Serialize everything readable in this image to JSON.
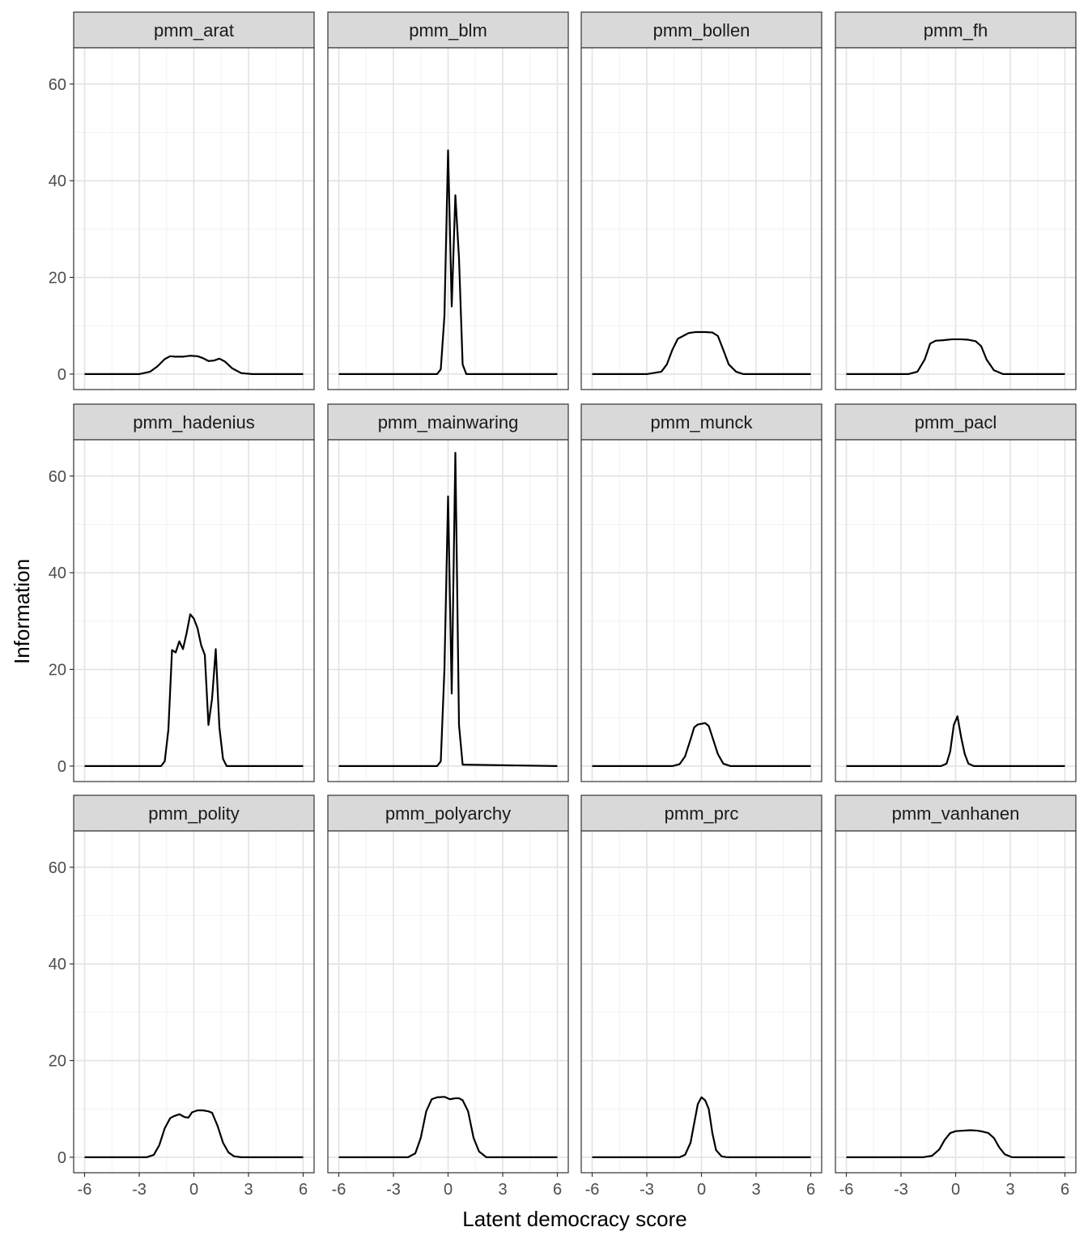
{
  "chart_data": {
    "type": "line",
    "layout": "facet-wrap",
    "ncol": 4,
    "xlabel": "Latent democracy score",
    "ylabel": "Information",
    "xlim": [
      -6.6,
      6.6
    ],
    "ylim": [
      -3.2,
      67.5
    ],
    "x_ticks": [
      -6,
      -3,
      0,
      3,
      6
    ],
    "y_ticks": [
      0,
      20,
      40,
      60
    ],
    "x_tick_labels": [
      "-6",
      "-3",
      "0",
      "3",
      "6"
    ],
    "y_tick_labels": [
      "0",
      "20",
      "40",
      "60"
    ],
    "grid": true,
    "line_color": "#000000",
    "strip_fill": "#d9d9d9",
    "panels": [
      {
        "name": "pmm_arat",
        "x": [
          -6,
          -3,
          -2.4,
          -2,
          -1.6,
          -1.3,
          -1,
          -0.6,
          -0.2,
          0.2,
          0.5,
          0.8,
          1.1,
          1.4,
          1.7,
          2.1,
          2.6,
          3.2,
          6
        ],
        "y": [
          0,
          0,
          0.5,
          1.6,
          3.1,
          3.7,
          3.6,
          3.6,
          3.8,
          3.7,
          3.3,
          2.7,
          2.8,
          3.2,
          2.6,
          1.2,
          0.2,
          0,
          0
        ]
      },
      {
        "name": "pmm_blm",
        "x": [
          -6,
          -0.6,
          -0.4,
          -0.2,
          0,
          0.2,
          0.4,
          0.6,
          0.8,
          1,
          6
        ],
        "y": [
          0,
          0,
          1,
          12,
          46.3,
          14,
          37,
          24,
          2,
          0,
          0
        ]
      },
      {
        "name": "pmm_bollen",
        "x": [
          -6,
          -3,
          -2.2,
          -1.9,
          -1.6,
          -1.3,
          -1,
          -0.7,
          -0.3,
          0.2,
          0.6,
          0.9,
          1.2,
          1.5,
          1.9,
          2.3,
          3,
          6
        ],
        "y": [
          0,
          0,
          0.5,
          2,
          5,
          7.3,
          7.9,
          8.5,
          8.7,
          8.7,
          8.6,
          7.9,
          5,
          2,
          0.5,
          0,
          0,
          0
        ]
      },
      {
        "name": "pmm_fh",
        "x": [
          -6,
          -2.6,
          -2.1,
          -1.7,
          -1.4,
          -1.1,
          -0.7,
          -0.2,
          0.3,
          0.7,
          1.1,
          1.4,
          1.7,
          2.1,
          2.6,
          6
        ],
        "y": [
          0,
          0,
          0.5,
          3,
          6.3,
          6.9,
          7,
          7.2,
          7.2,
          7.1,
          6.8,
          5.8,
          3,
          0.8,
          0,
          0
        ]
      },
      {
        "name": "pmm_hadenius",
        "x": [
          -6,
          -1.8,
          -1.6,
          -1.4,
          -1.2,
          -1,
          -0.8,
          -0.6,
          -0.4,
          -0.2,
          0,
          0.2,
          0.4,
          0.6,
          0.8,
          1,
          1.2,
          1.4,
          1.6,
          1.8,
          6
        ],
        "y": [
          0,
          0,
          1,
          7.5,
          24,
          23.5,
          25.8,
          24.2,
          27.5,
          31.4,
          30.5,
          28.5,
          25,
          23,
          8.5,
          14,
          24.2,
          8,
          1.5,
          0,
          0
        ]
      },
      {
        "name": "pmm_mainwaring",
        "x": [
          -6,
          -0.6,
          -0.4,
          -0.2,
          0,
          0.2,
          0.4,
          0.6,
          0.8,
          6
        ],
        "y": [
          0,
          0,
          1,
          20,
          55.8,
          15,
          64.8,
          8.5,
          0.3,
          0
        ]
      },
      {
        "name": "pmm_munck",
        "x": [
          -6,
          -1.6,
          -1.2,
          -0.9,
          -0.6,
          -0.4,
          -0.2,
          0.2,
          0.4,
          0.6,
          0.9,
          1.2,
          1.6,
          6
        ],
        "y": [
          0,
          0,
          0.4,
          2,
          5.5,
          8,
          8.6,
          8.9,
          8.3,
          6,
          2.5,
          0.5,
          0,
          0
        ]
      },
      {
        "name": "pmm_pacl",
        "x": [
          -6,
          -0.8,
          -0.5,
          -0.3,
          -0.1,
          0.1,
          0.3,
          0.5,
          0.7,
          1,
          6
        ],
        "y": [
          0,
          0,
          0.5,
          3,
          8.5,
          10.3,
          6,
          2.5,
          0.5,
          0,
          0
        ]
      },
      {
        "name": "pmm_polity",
        "x": [
          -6,
          -2.6,
          -2.2,
          -1.9,
          -1.6,
          -1.3,
          -1.1,
          -0.8,
          -0.5,
          -0.3,
          -0.1,
          0.2,
          0.5,
          0.8,
          1,
          1.3,
          1.6,
          1.9,
          2.2,
          2.6,
          6
        ],
        "y": [
          0,
          0,
          0.5,
          2.5,
          6,
          8.1,
          8.5,
          8.9,
          8.3,
          8.2,
          9.3,
          9.7,
          9.7,
          9.5,
          9.2,
          6.5,
          3,
          1,
          0.2,
          0,
          0
        ]
      },
      {
        "name": "pmm_polyarchy",
        "x": [
          -6,
          -2.2,
          -1.8,
          -1.5,
          -1.2,
          -0.9,
          -0.6,
          -0.2,
          0.1,
          0.4,
          0.6,
          0.8,
          1.1,
          1.4,
          1.7,
          2.1,
          6
        ],
        "y": [
          0,
          0,
          0.8,
          4,
          9.5,
          12,
          12.4,
          12.5,
          12,
          12.2,
          12.2,
          11.8,
          9.5,
          4,
          1.2,
          0,
          0
        ]
      },
      {
        "name": "pmm_prc",
        "x": [
          -6,
          -1.2,
          -0.9,
          -0.6,
          -0.4,
          -0.2,
          0,
          0.2,
          0.4,
          0.6,
          0.8,
          1.1,
          1.4,
          6
        ],
        "y": [
          0,
          0,
          0.5,
          3,
          7,
          11,
          12.4,
          11.8,
          10,
          5,
          1.5,
          0.2,
          0,
          0
        ]
      },
      {
        "name": "pmm_vanhanen",
        "x": [
          -6,
          -1.8,
          -1.3,
          -0.9,
          -0.6,
          -0.3,
          0,
          0.4,
          0.8,
          1.2,
          1.5,
          1.8,
          2.1,
          2.4,
          2.7,
          3.1,
          6
        ],
        "y": [
          0,
          0,
          0.3,
          1.6,
          3.6,
          5,
          5.4,
          5.5,
          5.6,
          5.5,
          5.3,
          5,
          4,
          2,
          0.6,
          0,
          0
        ]
      }
    ]
  }
}
